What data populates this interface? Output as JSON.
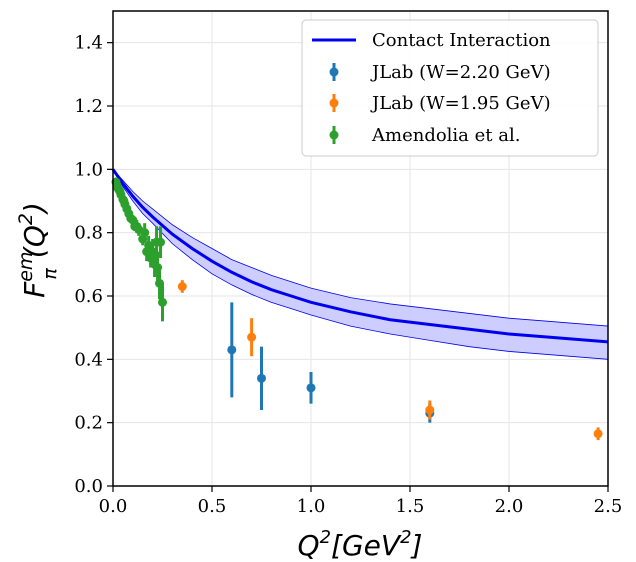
{
  "chart_data": {
    "type": "scatter",
    "xlim": [
      0.0,
      2.5
    ],
    "ylim": [
      0.0,
      1.5
    ],
    "xticks": [
      "0.0",
      "0.5",
      "1.0",
      "1.5",
      "2.0",
      "2.5"
    ],
    "yticks": [
      "0.0",
      "0.2",
      "0.4",
      "0.6",
      "0.8",
      "1.0",
      "1.2",
      "1.4"
    ],
    "xtick_values": [
      0.0,
      0.5,
      1.0,
      1.5,
      2.0,
      2.5
    ],
    "ytick_values": [
      0.0,
      0.2,
      0.4,
      0.6,
      0.8,
      1.0,
      1.2,
      1.4
    ],
    "xlabel": "Q",
    "xlabel_sup": "2",
    "xlabel_rest_open": "[GeV",
    "xlabel_rest_sup": "2",
    "xlabel_rest_close": "]",
    "ylabel_main": "F",
    "ylabel_sub": "π",
    "ylabel_sup": "em",
    "ylabel_paren_open": "(Q",
    "ylabel_paren_sup": "2",
    "ylabel_paren_close": ")",
    "grid": true,
    "legend_position": "top-right",
    "curve": {
      "name": "Contact Interaction",
      "color": "#0000ee",
      "x": [
        0.0,
        0.05,
        0.1,
        0.15,
        0.2,
        0.3,
        0.4,
        0.5,
        0.6,
        0.7,
        0.8,
        0.9,
        1.0,
        1.2,
        1.4,
        1.6,
        1.8,
        2.0,
        2.2,
        2.5
      ],
      "y": [
        1.0,
        0.955,
        0.915,
        0.88,
        0.85,
        0.795,
        0.75,
        0.71,
        0.675,
        0.645,
        0.62,
        0.6,
        0.58,
        0.55,
        0.525,
        0.51,
        0.495,
        0.48,
        0.47,
        0.455
      ],
      "band_upper": [
        1.0,
        0.965,
        0.93,
        0.9,
        0.875,
        0.825,
        0.785,
        0.75,
        0.715,
        0.69,
        0.665,
        0.645,
        0.625,
        0.595,
        0.575,
        0.56,
        0.545,
        0.53,
        0.52,
        0.505
      ],
      "band_lower": [
        1.0,
        0.945,
        0.9,
        0.86,
        0.83,
        0.765,
        0.715,
        0.67,
        0.635,
        0.605,
        0.58,
        0.56,
        0.54,
        0.505,
        0.48,
        0.46,
        0.44,
        0.425,
        0.415,
        0.4
      ],
      "band_color": "#c8c8ff"
    },
    "series": [
      {
        "name": "JLab (W=2.20 GeV)",
        "color": "#1f77b4",
        "x": [
          0.6,
          0.75,
          1.0,
          1.6
        ],
        "y": [
          0.43,
          0.34,
          0.31,
          0.23
        ],
        "yerr": [
          0.15,
          0.1,
          0.05,
          0.03
        ]
      },
      {
        "name": "JLab (W=1.95 GeV)",
        "color": "#ff7f0e",
        "x": [
          0.35,
          0.7,
          1.6,
          2.45
        ],
        "y": [
          0.63,
          0.47,
          0.24,
          0.165
        ],
        "yerr": [
          0.02,
          0.06,
          0.03,
          0.02
        ]
      },
      {
        "name": "Amendolia et al.",
        "color": "#2ca02c",
        "x": [
          0.015,
          0.02,
          0.025,
          0.03,
          0.035,
          0.04,
          0.05,
          0.055,
          0.06,
          0.07,
          0.08,
          0.09,
          0.1,
          0.11,
          0.12,
          0.13,
          0.15,
          0.16,
          0.17,
          0.18,
          0.19,
          0.2,
          0.21,
          0.22,
          0.225,
          0.235,
          0.24,
          0.25
        ],
        "y": [
          0.96,
          0.95,
          0.94,
          0.935,
          0.93,
          0.92,
          0.905,
          0.9,
          0.89,
          0.875,
          0.86,
          0.845,
          0.84,
          0.82,
          0.82,
          0.81,
          0.78,
          0.8,
          0.74,
          0.76,
          0.72,
          0.74,
          0.7,
          0.77,
          0.69,
          0.64,
          0.77,
          0.58
        ],
        "yerr": [
          0.01,
          0.01,
          0.01,
          0.01,
          0.01,
          0.01,
          0.01,
          0.01,
          0.01,
          0.01,
          0.015,
          0.015,
          0.015,
          0.015,
          0.02,
          0.02,
          0.02,
          0.03,
          0.03,
          0.03,
          0.03,
          0.04,
          0.04,
          0.05,
          0.05,
          0.05,
          0.05,
          0.06
        ]
      }
    ]
  }
}
